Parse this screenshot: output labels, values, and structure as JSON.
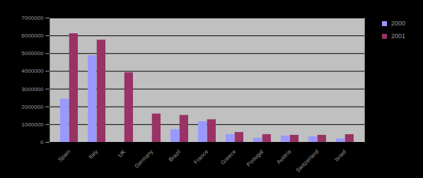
{
  "chart_data": {
    "type": "bar",
    "categories": [
      "Spain",
      "Italy",
      "UK",
      "Germany",
      "Brazil",
      "France",
      "Greece",
      "Portugal",
      "Austria",
      "Switzerland",
      "Israel"
    ],
    "series": [
      {
        "name": "2000",
        "color": "#9999ff",
        "values": [
          2440000,
          4880000,
          0,
          0,
          720000,
          1160000,
          440000,
          240000,
          360000,
          320000,
          200000
        ]
      },
      {
        "name": "2001",
        "color": "#993366",
        "values": [
          6120000,
          5760000,
          3920000,
          1600000,
          1520000,
          1280000,
          560000,
          440000,
          400000,
          400000,
          440000
        ]
      }
    ],
    "ylim": [
      0,
      7000000
    ],
    "yticks": [
      0,
      1000000,
      2000000,
      3000000,
      4000000,
      5000000,
      6000000,
      7000000
    ],
    "grid": true,
    "legend": "right"
  }
}
